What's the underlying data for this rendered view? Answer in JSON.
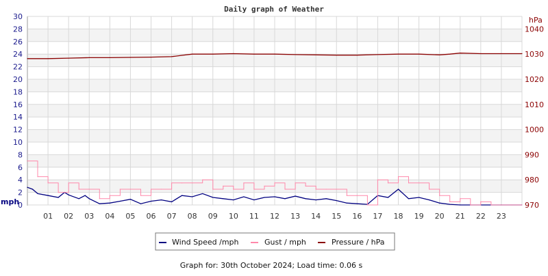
{
  "chart_data": {
    "type": "line",
    "title": "Daily graph of Weather",
    "footer": "Graph for: 30th October 2024; Load time: 0.06 s",
    "y_left": {
      "label": "mph",
      "range": [
        0,
        30
      ],
      "ticks": [
        0,
        2,
        4,
        6,
        8,
        10,
        12,
        14,
        16,
        18,
        20,
        22,
        24,
        26,
        28,
        30
      ],
      "color": "#1a1a8c"
    },
    "y_right": {
      "label": "hPa",
      "range": [
        970,
        1045
      ],
      "ticks": [
        970,
        980,
        990,
        1000,
        1010,
        1020,
        1030,
        1040
      ],
      "color": "#8b0000"
    },
    "x": {
      "range": [
        0,
        24
      ],
      "ticks": [
        "01",
        "02",
        "03",
        "04",
        "05",
        "06",
        "07",
        "08",
        "09",
        "10",
        "11",
        "12",
        "13",
        "14",
        "15",
        "16",
        "17",
        "18",
        "19",
        "20",
        "21",
        "22",
        "23"
      ]
    },
    "grid": true,
    "legend_position": "bottom",
    "series": [
      {
        "name": "Wind Speed /mph",
        "axis": "left",
        "color": "#000080",
        "x": [
          0,
          0.25,
          0.5,
          1,
          1.5,
          1.8,
          2,
          2.5,
          2.8,
          3,
          3.5,
          4,
          4.5,
          5,
          5.5,
          6,
          6.5,
          7,
          7.5,
          8,
          8.5,
          9,
          9.5,
          10,
          10.5,
          11,
          11.5,
          12,
          12.5,
          13,
          13.5,
          14,
          14.5,
          15,
          15.5,
          16,
          16.5,
          17,
          17.5,
          18,
          18.5,
          19,
          19.5,
          20,
          20.5,
          21,
          22,
          23,
          24
        ],
        "y": [
          2.8,
          2.5,
          1.8,
          1.5,
          1.2,
          2.0,
          1.6,
          1.0,
          1.5,
          1.0,
          0.2,
          0.3,
          0.6,
          0.9,
          0.2,
          0.6,
          0.8,
          0.5,
          1.5,
          1.3,
          1.8,
          1.2,
          1.0,
          0.8,
          1.3,
          0.8,
          1.2,
          1.3,
          1.0,
          1.4,
          1.0,
          0.8,
          1.0,
          0.7,
          0.3,
          0.2,
          0.1,
          1.5,
          1.2,
          2.5,
          1.0,
          1.2,
          0.8,
          0.3,
          0.1,
          0,
          0,
          0,
          0
        ]
      },
      {
        "name": "Gust / mph",
        "axis": "left",
        "color": "#ff88aa",
        "x": [
          0,
          0.5,
          1,
          1.5,
          2,
          2.5,
          3,
          3.5,
          4,
          4.5,
          5,
          5.5,
          6,
          6.5,
          7,
          7.5,
          8,
          8.5,
          9,
          9.5,
          10,
          10.5,
          11,
          11.5,
          12,
          12.5,
          13,
          13.5,
          14,
          14.5,
          15,
          15.5,
          16,
          16.5,
          17,
          17.5,
          18,
          18.5,
          19,
          19.5,
          20,
          20.5,
          21,
          21.5,
          22,
          22.5,
          23,
          23.5,
          24
        ],
        "y": [
          7,
          4.5,
          3.5,
          2,
          3.5,
          2.5,
          2.5,
          1,
          1.5,
          2.5,
          2.5,
          1.5,
          2.5,
          2.5,
          3.5,
          3.5,
          3.5,
          4,
          2.5,
          3,
          2.5,
          3.5,
          2.5,
          3,
          3.5,
          2.5,
          3.5,
          3,
          2.5,
          2.5,
          2.5,
          1.5,
          1.5,
          0,
          4,
          3.5,
          4.5,
          3.5,
          3.5,
          2.5,
          1.5,
          0.5,
          1,
          0,
          0.5,
          0,
          0,
          0,
          0
        ]
      },
      {
        "name": "Pressure / hPa",
        "axis": "right",
        "color": "#8b0000",
        "x": [
          0,
          1,
          2,
          3,
          4,
          5,
          6,
          7,
          7.5,
          8,
          9,
          10,
          11,
          12,
          13,
          14,
          15,
          16,
          17,
          18,
          19,
          20,
          20.5,
          21,
          22,
          23,
          24
        ],
        "y": [
          1028.2,
          1028.2,
          1028.4,
          1028.6,
          1028.6,
          1028.7,
          1028.8,
          1029.0,
          1029.5,
          1030.0,
          1030.0,
          1030.2,
          1030.0,
          1030.0,
          1029.8,
          1029.7,
          1029.6,
          1029.6,
          1029.8,
          1030.0,
          1030.0,
          1029.7,
          1030.0,
          1030.4,
          1030.2,
          1030.2,
          1030.2
        ]
      }
    ]
  }
}
